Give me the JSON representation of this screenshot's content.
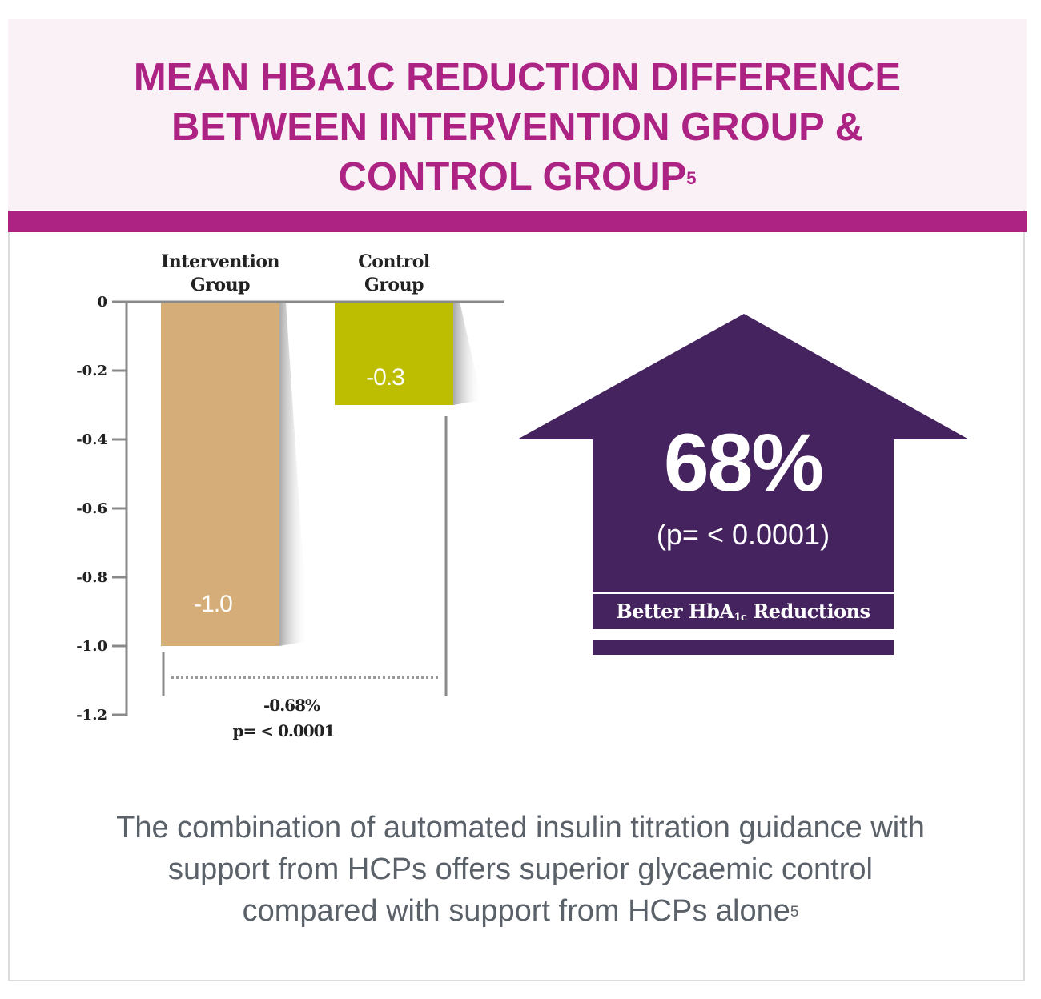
{
  "title": {
    "lines": [
      "MEAN HBA1C REDUCTION DIFFERENCE",
      "BETWEEN INTERVENTION GROUP &",
      "CONTROL GROUP"
    ],
    "superscript": "5"
  },
  "chart_data": {
    "type": "bar",
    "categories": [
      {
        "line1": "Intervention",
        "line2": "Group"
      },
      {
        "line1": "Control",
        "line2": "Group"
      }
    ],
    "values": [
      -1.0,
      -0.3
    ],
    "value_labels": [
      "-1.0",
      "-0.3"
    ],
    "ylim": [
      -1.2,
      0
    ],
    "yticks": [
      0,
      -0.2,
      -0.4,
      -0.6,
      -0.8,
      -1.0,
      -1.2
    ],
    "ytick_labels": [
      "0",
      "-0.2",
      "-0.4",
      "-0.6",
      "-0.8",
      "-1.0",
      "-1.2"
    ],
    "colors": [
      "#d4ad79",
      "#bdbd02"
    ],
    "difference": {
      "label": "-0.68%",
      "pvalue": "p= < 0.0001"
    }
  },
  "highlight": {
    "value": "68%",
    "pvalue": "(p= < 0.0001)",
    "label_main": "Better HbA",
    "label_sub": "1c",
    "label_end": " Reductions",
    "color": "#45235f"
  },
  "caption": {
    "lines": [
      "The combination of automated insulin titration guidance with",
      "support from HCPs offers superior glycaemic control",
      "compared with support from HCPs alone"
    ],
    "superscript": "5"
  }
}
